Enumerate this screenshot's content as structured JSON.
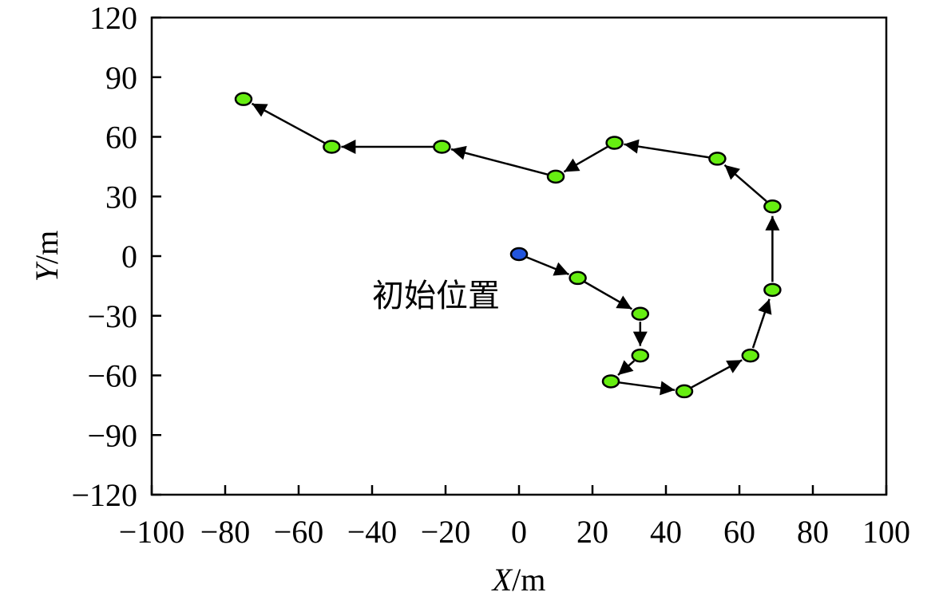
{
  "chart_data": {
    "type": "scatter",
    "title": "",
    "xlabel_var": "X",
    "xlabel_unit": "/m",
    "ylabel_var": "Y",
    "ylabel_unit": "/m",
    "xlim": [
      -100,
      100
    ],
    "ylim": [
      -120,
      120
    ],
    "xticks": [
      -100,
      -80,
      -60,
      -40,
      -20,
      0,
      20,
      40,
      60,
      80,
      100
    ],
    "yticks": [
      -120,
      -90,
      -60,
      -30,
      0,
      30,
      60,
      90,
      120
    ],
    "xtick_labels": [
      "−100",
      "−80",
      "−60",
      "−40",
      "−20",
      "0",
      "20",
      "40",
      "60",
      "80",
      "100"
    ],
    "ytick_labels": [
      "−120",
      "−90",
      "−60",
      "−30",
      "0",
      "30",
      "60",
      "90",
      "120"
    ],
    "grid": false,
    "start_color": "#2255dd",
    "point_color": "#66ee11",
    "line_color": "#000000",
    "annotation": "初始位置",
    "points": [
      {
        "x": 0,
        "y": 1
      },
      {
        "x": 16,
        "y": -11
      },
      {
        "x": 33,
        "y": -29
      },
      {
        "x": 33,
        "y": -50
      },
      {
        "x": 25,
        "y": -63
      },
      {
        "x": 45,
        "y": -68
      },
      {
        "x": 63,
        "y": -50
      },
      {
        "x": 69,
        "y": -17
      },
      {
        "x": 69,
        "y": 25
      },
      {
        "x": 54,
        "y": 49
      },
      {
        "x": 26,
        "y": 57
      },
      {
        "x": 10,
        "y": 40
      },
      {
        "x": -21,
        "y": 55
      },
      {
        "x": -51,
        "y": 55
      },
      {
        "x": -75,
        "y": 79
      }
    ]
  }
}
